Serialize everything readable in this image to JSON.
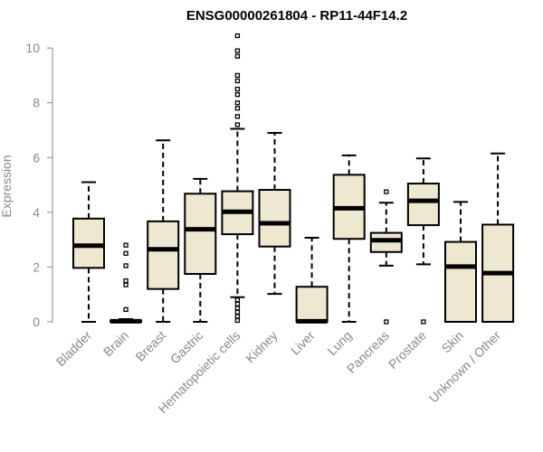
{
  "chart_data": {
    "type": "box",
    "title": "ENSG00000261804 - RP11-44F14.2",
    "ylabel": "Expression",
    "xlabel": "",
    "ylim": [
      0,
      10.5
    ],
    "yticks": [
      0,
      2,
      4,
      6,
      8,
      10
    ],
    "colors": {
      "box_fill": "#EEE8D0",
      "stroke": "#000000",
      "axis_text": "#888888"
    },
    "categories": [
      "Bladder",
      "Brain",
      "Breast",
      "Gastric",
      "Hematopoietic cells",
      "Kidney",
      "Liver",
      "Lung",
      "Pancreas",
      "Prostate",
      "Skin",
      "Unknown / Other"
    ],
    "boxes": [
      {
        "name": "Bladder",
        "min": 0,
        "q1": 1.97,
        "median": 2.78,
        "q3": 3.77,
        "max": 5.1,
        "outliers": []
      },
      {
        "name": "Brain",
        "min": 0,
        "q1": 0,
        "median": 0.02,
        "q3": 0.05,
        "max": 0.1,
        "outliers": [
          0.45,
          1.35,
          1.5,
          2.05,
          2.5,
          2.8
        ]
      },
      {
        "name": "Breast",
        "min": 0,
        "q1": 1.2,
        "median": 2.65,
        "q3": 3.67,
        "max": 6.63,
        "outliers": []
      },
      {
        "name": "Gastric",
        "min": 0,
        "q1": 1.75,
        "median": 3.38,
        "q3": 4.68,
        "max": 5.22,
        "outliers": []
      },
      {
        "name": "Hematopoietic cells",
        "min": 0.9,
        "q1": 3.2,
        "median": 4.02,
        "q3": 4.77,
        "max": 7.05,
        "outliers": [
          0.05,
          0.2,
          0.35,
          0.5,
          0.65,
          0.8,
          7.2,
          7.5,
          7.8,
          8.0,
          8.3,
          8.5,
          8.8,
          9.0,
          9.7,
          9.9,
          10.45
        ]
      },
      {
        "name": "Kidney",
        "min": 1.02,
        "q1": 2.75,
        "median": 3.6,
        "q3": 4.82,
        "max": 6.9,
        "outliers": []
      },
      {
        "name": "Liver",
        "min": 0,
        "q1": 0,
        "median": 0.02,
        "q3": 1.28,
        "max": 3.07,
        "outliers": []
      },
      {
        "name": "Lung",
        "min": 0,
        "q1": 3.03,
        "median": 4.15,
        "q3": 5.37,
        "max": 6.08,
        "outliers": []
      },
      {
        "name": "Pancreas",
        "min": 2.05,
        "q1": 2.55,
        "median": 2.98,
        "q3": 3.25,
        "max": 4.35,
        "outliers": [
          0,
          4.75
        ]
      },
      {
        "name": "Prostate",
        "min": 2.1,
        "q1": 3.53,
        "median": 4.42,
        "q3": 5.05,
        "max": 5.97,
        "outliers": [
          0
        ]
      },
      {
        "name": "Skin",
        "min": 0,
        "q1": 0,
        "median": 2.02,
        "q3": 2.92,
        "max": 4.38,
        "outliers": []
      },
      {
        "name": "Unknown / Other",
        "min": 0,
        "q1": 0,
        "median": 1.78,
        "q3": 3.55,
        "max": 6.15,
        "outliers": []
      }
    ]
  }
}
